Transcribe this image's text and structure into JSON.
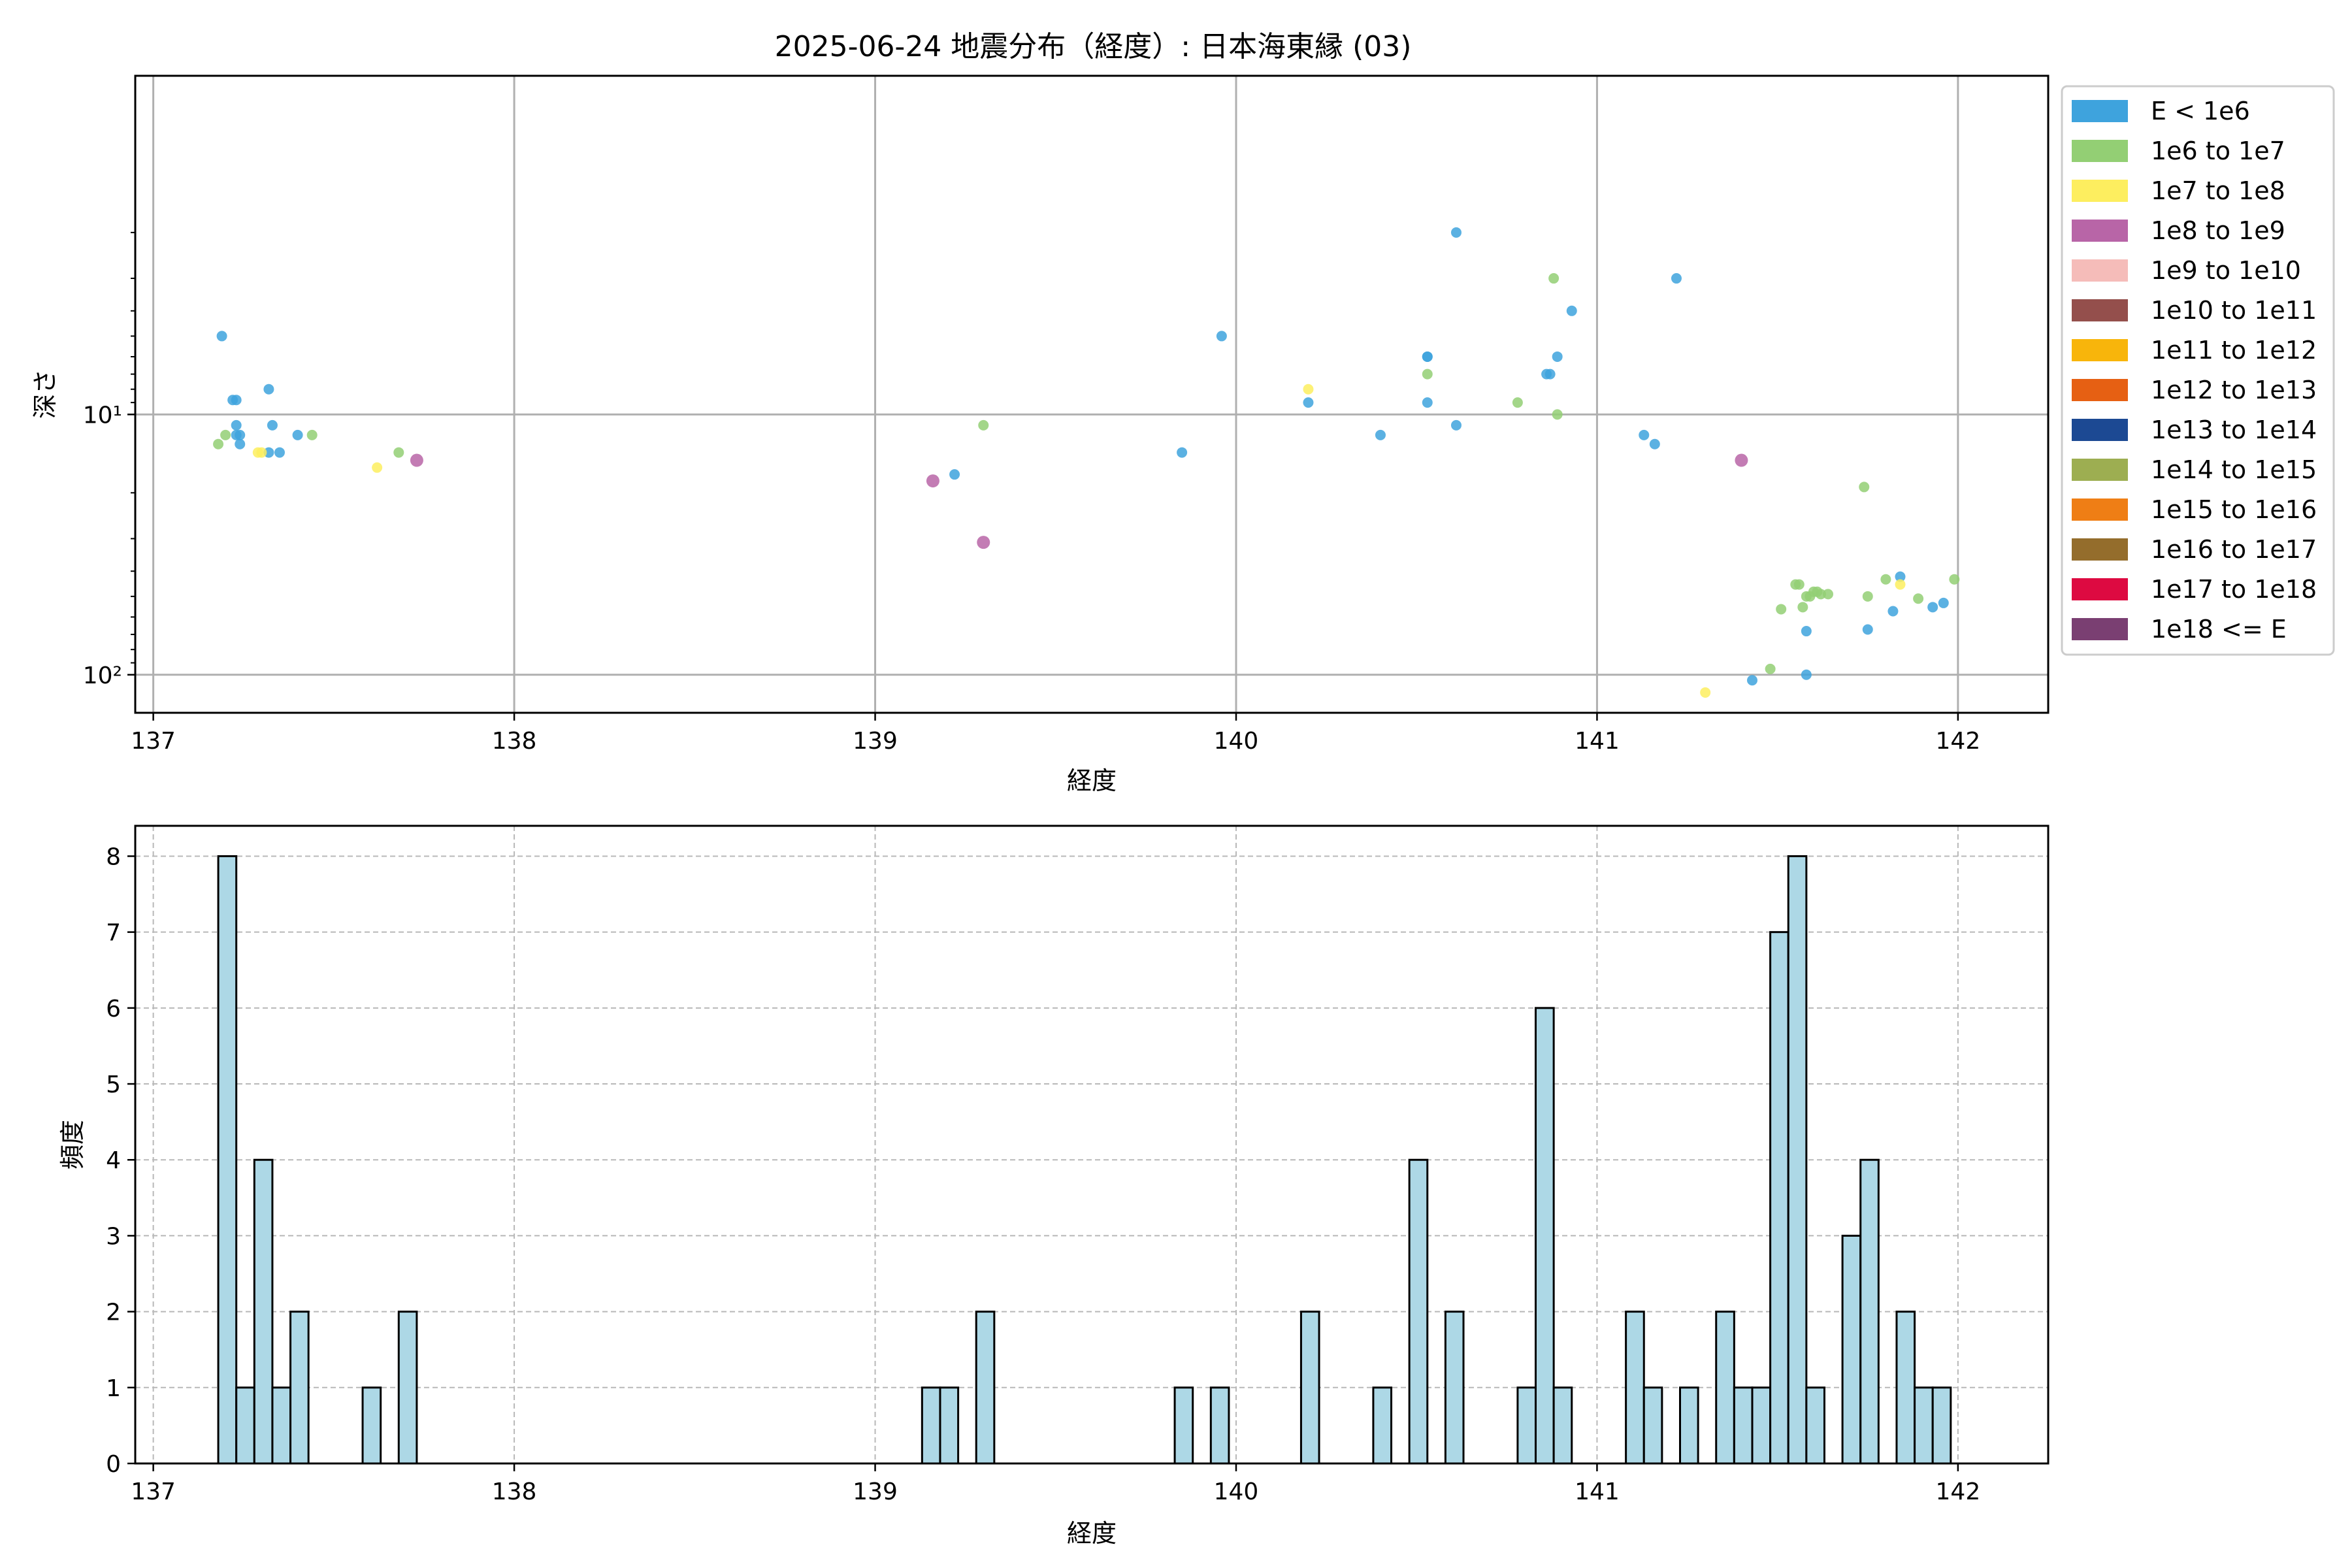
{
  "chart_data": [
    {
      "type": "scatter",
      "title": "2025-06-24 地震分布（経度）: 日本海東縁 (03)",
      "xlabel": "経度",
      "ylabel": "深さ",
      "xlim": [
        136.95,
        142.25
      ],
      "ylim": [
        140,
        0.5
      ],
      "y_scale": "log",
      "y_inverted": true,
      "x_ticks": [
        137,
        138,
        139,
        140,
        141,
        142
      ],
      "y_ticks": [
        10,
        100
      ],
      "y_tick_labels": [
        "10¹",
        "10²"
      ],
      "grid": true,
      "legend_position": "outside-right",
      "legend": [
        {
          "label": "E < 1e6",
          "color": "#3ea3dd"
        },
        {
          "label": "1e6 to 1e7",
          "color": "#93cf74"
        },
        {
          "label": "1e7 to 1e8",
          "color": "#fdee5f"
        },
        {
          "label": "1e8 to 1e9",
          "color": "#b865a7"
        },
        {
          "label": "1e9 to 1e10",
          "color": "#f5bcb9"
        },
        {
          "label": "1e10 to 1e11",
          "color": "#944f4c"
        },
        {
          "label": "1e11 to 1e12",
          "color": "#f8b50b"
        },
        {
          "label": "1e12 to 1e13",
          "color": "#e66013"
        },
        {
          "label": "1e13 to 1e14",
          "color": "#1c4993"
        },
        {
          "label": "1e14 to 1e15",
          "color": "#9dae51"
        },
        {
          "label": "1e15 to 1e16",
          "color": "#ef7e15"
        },
        {
          "label": "1e16 to 1e17",
          "color": "#946d2c"
        },
        {
          "label": "1e17 to 1e18",
          "color": "#dd0a41"
        },
        {
          "label": "1e18 <= E",
          "color": "#7a3f72"
        }
      ],
      "series": [
        {
          "class": 0,
          "points": [
            [
              137.19,
              5.0
            ],
            [
              137.22,
              8.8
            ],
            [
              137.23,
              8.8
            ],
            [
              137.23,
              11.0
            ],
            [
              137.23,
              12.0
            ],
            [
              137.24,
              12.0
            ],
            [
              137.24,
              13.0
            ],
            [
              137.32,
              8.0
            ],
            [
              137.32,
              14.0
            ],
            [
              137.33,
              11.0
            ],
            [
              137.35,
              14.0
            ],
            [
              137.4,
              12.0
            ],
            [
              139.22,
              17.0
            ],
            [
              139.85,
              14.0
            ],
            [
              139.96,
              5.0
            ],
            [
              140.2,
              9.0
            ],
            [
              140.4,
              12.0
            ],
            [
              140.53,
              6.0
            ],
            [
              140.53,
              6.0
            ],
            [
              140.53,
              9.0
            ],
            [
              140.61,
              11.0
            ],
            [
              140.61,
              2.0
            ],
            [
              140.86,
              7.0
            ],
            [
              140.87,
              7.0
            ],
            [
              140.89,
              6.0
            ],
            [
              140.93,
              4.0
            ],
            [
              141.13,
              12.0
            ],
            [
              141.16,
              13.0
            ],
            [
              141.22,
              3.0
            ],
            [
              141.43,
              105
            ],
            [
              141.58,
              68
            ],
            [
              141.58,
              100
            ],
            [
              141.75,
              67
            ],
            [
              141.82,
              57
            ],
            [
              141.84,
              42
            ],
            [
              141.93,
              55
            ],
            [
              141.96,
              53
            ]
          ]
        },
        {
          "class": 1,
          "points": [
            [
              137.18,
              13.0
            ],
            [
              137.2,
              12.0
            ],
            [
              137.44,
              12.0
            ],
            [
              137.68,
              14.0
            ],
            [
              139.3,
              11.0
            ],
            [
              140.53,
              7.0
            ],
            [
              140.78,
              9.0
            ],
            [
              140.88,
              3.0
            ],
            [
              140.89,
              10.0
            ],
            [
              141.48,
              95
            ],
            [
              141.51,
              56
            ],
            [
              141.55,
              45
            ],
            [
              141.56,
              45
            ],
            [
              141.57,
              55
            ],
            [
              141.58,
              50
            ],
            [
              141.59,
              50
            ],
            [
              141.6,
              48
            ],
            [
              141.61,
              48
            ],
            [
              141.62,
              49
            ],
            [
              141.64,
              49
            ],
            [
              141.74,
              19.0
            ],
            [
              141.75,
              50
            ],
            [
              141.8,
              43
            ],
            [
              141.89,
              51
            ],
            [
              141.99,
              43
            ]
          ]
        },
        {
          "class": 2,
          "points": [
            [
              137.29,
              14.0
            ],
            [
              137.3,
              14.0
            ],
            [
              137.62,
              16.0
            ],
            [
              140.2,
              8.0
            ],
            [
              141.3,
              117
            ],
            [
              141.84,
              45
            ]
          ]
        },
        {
          "class": 3,
          "points": [
            [
              137.73,
              15.0
            ],
            [
              139.16,
              18.0
            ],
            [
              139.3,
              31.0
            ],
            [
              141.4,
              15.0
            ]
          ]
        }
      ]
    },
    {
      "type": "bar",
      "subtype": "histogram",
      "xlabel": "経度",
      "ylabel": "頻度",
      "xlim": [
        136.95,
        142.25
      ],
      "ylim": [
        0,
        8.4
      ],
      "x_ticks": [
        137,
        138,
        139,
        140,
        141,
        142
      ],
      "y_ticks": [
        0,
        1,
        2,
        3,
        4,
        5,
        6,
        7,
        8
      ],
      "grid": true,
      "bar_color": "#add8e6",
      "bin_width": 0.05,
      "bins": [
        [
          137.18,
          8
        ],
        [
          137.23,
          1
        ],
        [
          137.28,
          4
        ],
        [
          137.33,
          1
        ],
        [
          137.38,
          2
        ],
        [
          137.58,
          1
        ],
        [
          137.68,
          2
        ],
        [
          139.13,
          1
        ],
        [
          139.18,
          1
        ],
        [
          139.28,
          2
        ],
        [
          139.83,
          1
        ],
        [
          139.93,
          1
        ],
        [
          140.18,
          2
        ],
        [
          140.38,
          1
        ],
        [
          140.48,
          4
        ],
        [
          140.58,
          2
        ],
        [
          140.78,
          1
        ],
        [
          140.83,
          6
        ],
        [
          140.88,
          1
        ],
        [
          141.08,
          2
        ],
        [
          141.13,
          1
        ],
        [
          141.23,
          1
        ],
        [
          141.33,
          2
        ],
        [
          141.38,
          1
        ],
        [
          141.43,
          1
        ],
        [
          141.48,
          7
        ],
        [
          141.53,
          8
        ],
        [
          141.58,
          1
        ],
        [
          141.68,
          3
        ],
        [
          141.73,
          4
        ],
        [
          141.83,
          2
        ],
        [
          141.88,
          1
        ],
        [
          141.93,
          1
        ]
      ]
    }
  ]
}
